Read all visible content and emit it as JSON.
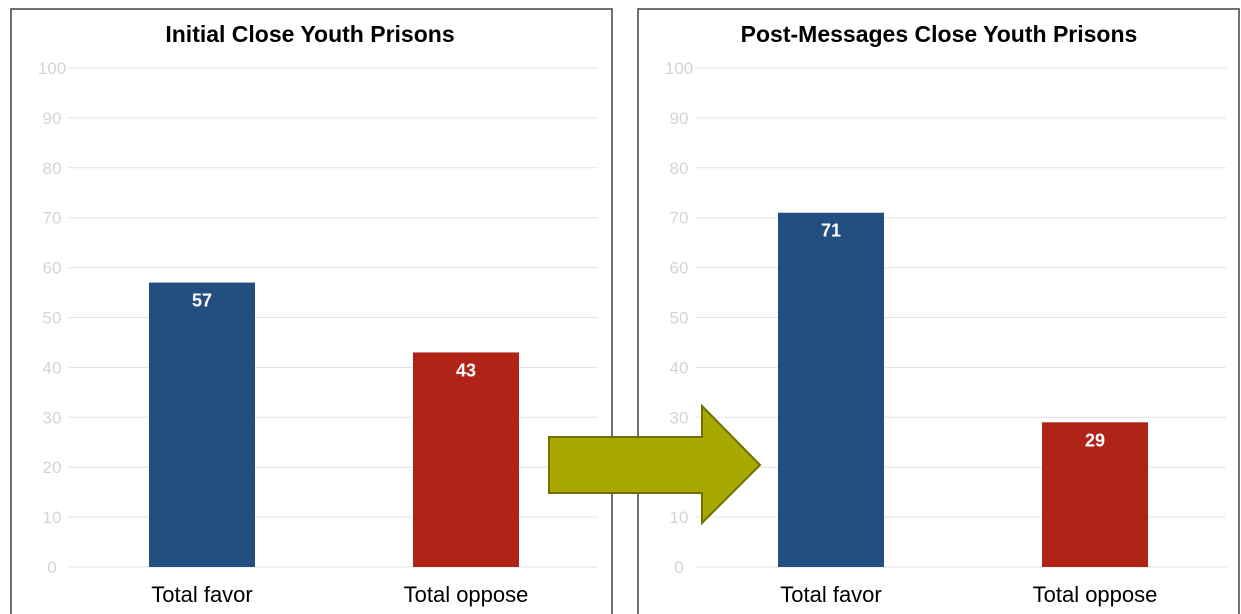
{
  "colors": {
    "favor": "#234F80",
    "oppose": "#B02418",
    "arrow_fill": "#A8A800",
    "arrow_stroke": "#707000"
  },
  "icons": {
    "transition": "right-arrow-icon"
  },
  "chart_data": [
    {
      "type": "bar",
      "title": "Initial Close Youth Prisons",
      "categories": [
        "Total favor",
        "Total oppose"
      ],
      "values": [
        57,
        43
      ],
      "data_labels": [
        "57",
        "43"
      ],
      "ylim": [
        0,
        100
      ],
      "yticks": [
        "0",
        "10",
        "20",
        "30",
        "40",
        "50",
        "60",
        "70",
        "80",
        "90",
        "100"
      ],
      "xlabel": "",
      "ylabel": "",
      "grid": true,
      "legend": "none"
    },
    {
      "type": "bar",
      "title": "Post-Messages Close Youth Prisons",
      "categories": [
        "Total favor",
        "Total oppose"
      ],
      "values": [
        71,
        29
      ],
      "data_labels": [
        "71",
        "29"
      ],
      "ylim": [
        0,
        100
      ],
      "yticks": [
        "0",
        "10",
        "20",
        "30",
        "40",
        "50",
        "60",
        "70",
        "80",
        "90",
        "100"
      ],
      "xlabel": "",
      "ylabel": "",
      "grid": true,
      "legend": "none"
    }
  ]
}
